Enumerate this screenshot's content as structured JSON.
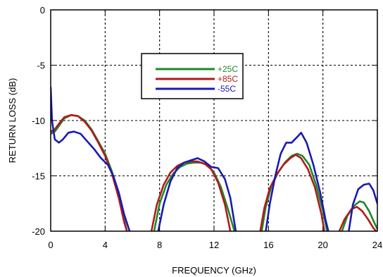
{
  "chart_data": {
    "type": "line",
    "title": "",
    "xlabel": "FREQUENCY (GHz)",
    "ylabel": "RETURN LOSS (dB)",
    "xlim": [
      0,
      24
    ],
    "ylim": [
      -20,
      0
    ],
    "xticks": [
      0,
      4,
      8,
      12,
      16,
      20,
      24
    ],
    "yticks": [
      0,
      -5,
      -10,
      -15,
      -20
    ],
    "grid": true,
    "grid_style": "dotted",
    "legend_position": "top-center",
    "series": [
      {
        "name": "+25C",
        "color": "#1a8a2a",
        "segments": [
          [
            [
              0.0,
              -11.2
            ],
            [
              0.3,
              -11.0
            ],
            [
              0.6,
              -10.5
            ],
            [
              1.0,
              -9.8
            ],
            [
              1.5,
              -9.5
            ],
            [
              2.0,
              -9.6
            ],
            [
              2.5,
              -10.0
            ],
            [
              3.0,
              -10.8
            ],
            [
              3.5,
              -11.9
            ],
            [
              4.0,
              -13.0
            ],
            [
              4.5,
              -14.6
            ],
            [
              5.0,
              -16.8
            ],
            [
              5.4,
              -19.0
            ],
            [
              5.6,
              -20.0
            ]
          ],
          [
            [
              7.6,
              -20.0
            ],
            [
              8.0,
              -17.5
            ],
            [
              8.5,
              -15.8
            ],
            [
              9.0,
              -14.8
            ],
            [
              9.5,
              -14.2
            ],
            [
              10.0,
              -13.9
            ],
            [
              10.5,
              -13.8
            ],
            [
              11.0,
              -13.8
            ],
            [
              11.5,
              -14.0
            ],
            [
              12.0,
              -14.7
            ],
            [
              12.5,
              -16.0
            ],
            [
              13.0,
              -17.9
            ],
            [
              13.5,
              -20.0
            ]
          ],
          [
            [
              15.5,
              -20.0
            ],
            [
              15.8,
              -17.8
            ],
            [
              16.2,
              -16.0
            ],
            [
              16.7,
              -14.7
            ],
            [
              17.2,
              -13.8
            ],
            [
              17.7,
              -13.2
            ],
            [
              18.1,
              -13.0
            ],
            [
              18.5,
              -13.2
            ],
            [
              19.0,
              -14.0
            ],
            [
              19.5,
              -15.8
            ],
            [
              20.0,
              -18.2
            ],
            [
              20.3,
              -20.0
            ]
          ],
          [
            [
              21.4,
              -20.0
            ],
            [
              21.8,
              -18.6
            ],
            [
              22.3,
              -17.7
            ],
            [
              22.7,
              -17.3
            ],
            [
              23.0,
              -17.4
            ],
            [
              23.4,
              -18.2
            ],
            [
              23.8,
              -19.3
            ],
            [
              24.0,
              -19.8
            ]
          ]
        ]
      },
      {
        "name": "+85C",
        "color": "#b21a1a",
        "segments": [
          [
            [
              0.0,
              -11.0
            ],
            [
              0.3,
              -10.8
            ],
            [
              0.6,
              -10.3
            ],
            [
              1.0,
              -9.7
            ],
            [
              1.5,
              -9.5
            ],
            [
              2.0,
              -9.6
            ],
            [
              2.5,
              -10.1
            ],
            [
              3.0,
              -10.9
            ],
            [
              3.5,
              -12.0
            ],
            [
              4.0,
              -13.2
            ],
            [
              4.5,
              -14.8
            ],
            [
              5.0,
              -17.0
            ],
            [
              5.4,
              -19.2
            ],
            [
              5.6,
              -20.0
            ]
          ],
          [
            [
              7.4,
              -20.0
            ],
            [
              7.8,
              -17.6
            ],
            [
              8.3,
              -15.8
            ],
            [
              8.8,
              -14.7
            ],
            [
              9.3,
              -14.1
            ],
            [
              9.8,
              -13.8
            ],
            [
              10.3,
              -13.7
            ],
            [
              10.8,
              -13.7
            ],
            [
              11.3,
              -13.9
            ],
            [
              11.8,
              -14.4
            ],
            [
              12.3,
              -15.6
            ],
            [
              12.8,
              -17.6
            ],
            [
              13.2,
              -20.0
            ]
          ],
          [
            [
              15.4,
              -20.0
            ],
            [
              15.7,
              -17.9
            ],
            [
              16.1,
              -16.1
            ],
            [
              16.6,
              -14.9
            ],
            [
              17.1,
              -14.0
            ],
            [
              17.6,
              -13.4
            ],
            [
              18.0,
              -13.1
            ],
            [
              18.4,
              -13.4
            ],
            [
              18.9,
              -14.4
            ],
            [
              19.4,
              -16.0
            ],
            [
              19.9,
              -18.5
            ],
            [
              20.1,
              -20.0
            ]
          ],
          [
            [
              21.2,
              -20.0
            ],
            [
              21.6,
              -18.9
            ],
            [
              22.1,
              -18.0
            ],
            [
              22.5,
              -17.8
            ],
            [
              22.9,
              -18.2
            ],
            [
              23.3,
              -18.9
            ],
            [
              23.7,
              -19.7
            ],
            [
              23.9,
              -20.0
            ]
          ]
        ]
      },
      {
        "name": "-55C",
        "color": "#1a1ab2",
        "segments": [
          [
            [
              0.0,
              -7.0
            ],
            [
              0.1,
              -10.0
            ],
            [
              0.3,
              -11.7
            ],
            [
              0.6,
              -12.0
            ],
            [
              0.9,
              -11.7
            ],
            [
              1.3,
              -11.1
            ],
            [
              1.7,
              -11.0
            ],
            [
              2.2,
              -11.2
            ],
            [
              2.7,
              -11.9
            ],
            [
              3.2,
              -12.6
            ],
            [
              3.7,
              -13.4
            ],
            [
              4.2,
              -14.0
            ],
            [
              4.6,
              -15.0
            ],
            [
              5.0,
              -16.5
            ],
            [
              5.4,
              -18.5
            ],
            [
              5.8,
              -20.0
            ]
          ],
          [
            [
              7.9,
              -20.0
            ],
            [
              8.3,
              -17.6
            ],
            [
              8.8,
              -15.5
            ],
            [
              9.3,
              -14.3
            ],
            [
              9.8,
              -13.8
            ],
            [
              10.3,
              -13.6
            ],
            [
              10.8,
              -13.4
            ],
            [
              11.3,
              -13.7
            ],
            [
              11.8,
              -14.2
            ],
            [
              12.3,
              -14.3
            ],
            [
              12.8,
              -15.3
            ],
            [
              13.2,
              -17.0
            ],
            [
              13.6,
              -20.0
            ]
          ],
          [
            [
              15.8,
              -20.0
            ],
            [
              16.1,
              -17.5
            ],
            [
              16.5,
              -15.0
            ],
            [
              16.9,
              -13.0
            ],
            [
              17.3,
              -12.0
            ],
            [
              17.7,
              -12.0
            ],
            [
              18.1,
              -11.5
            ],
            [
              18.4,
              -11.1
            ],
            [
              18.8,
              -12.0
            ],
            [
              19.3,
              -14.0
            ],
            [
              19.8,
              -16.5
            ],
            [
              20.2,
              -19.0
            ],
            [
              20.4,
              -20.0
            ]
          ],
          [
            [
              21.9,
              -20.0
            ],
            [
              22.2,
              -17.6
            ],
            [
              22.6,
              -16.2
            ],
            [
              23.0,
              -15.8
            ],
            [
              23.4,
              -15.7
            ],
            [
              23.7,
              -16.3
            ],
            [
              24.0,
              -17.5
            ]
          ]
        ]
      }
    ]
  }
}
